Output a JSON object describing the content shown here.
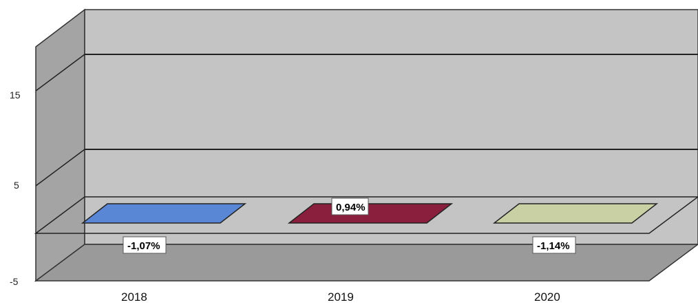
{
  "chart_data": {
    "type": "bar",
    "title": "",
    "xlabel": "",
    "ylabel": "",
    "categories": [
      "2018",
      "2019",
      "2020"
    ],
    "values": [
      -1.07,
      0.94,
      -1.14
    ],
    "data_labels": [
      "-1,07%",
      "0,94%",
      "-1,14%"
    ],
    "y_ticks": [
      "15",
      "5",
      "-5"
    ],
    "ylim": [
      -5,
      20
    ],
    "grid": true,
    "legend": "none",
    "three_d": true,
    "colors": [
      "#5a86d6",
      "#8a1f3d",
      "#c8d0a4"
    ]
  }
}
